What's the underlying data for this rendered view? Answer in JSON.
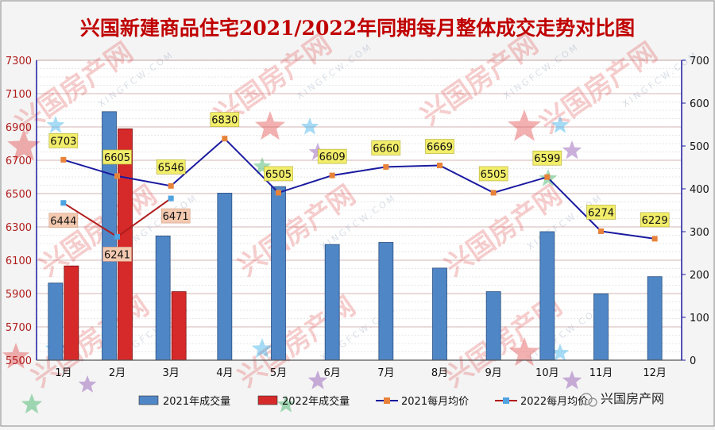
{
  "chart_data": {
    "type": "bar",
    "title": "兴国新建商品住宅2021/2022年同期每月整体成交走势对比图",
    "categories": [
      "1月",
      "2月",
      "3月",
      "4月",
      "5月",
      "6月",
      "7月",
      "8月",
      "9月",
      "10月",
      "11月",
      "12月"
    ],
    "left_axis": {
      "ylim": [
        5500,
        7300
      ],
      "ticks": [
        5500,
        5700,
        5900,
        6100,
        6300,
        6500,
        6700,
        6900,
        7100,
        7300
      ]
    },
    "right_axis": {
      "ylim": [
        0,
        700
      ],
      "ticks": [
        0,
        100,
        200,
        300,
        400,
        500,
        600,
        700
      ]
    },
    "series": [
      {
        "name": "2021年成交量",
        "kind": "bar",
        "axis": "right",
        "color": "#4f86c6",
        "values": [
          180,
          580,
          290,
          390,
          405,
          270,
          275,
          215,
          160,
          300,
          155,
          195
        ]
      },
      {
        "name": "2022年成交量",
        "kind": "bar",
        "axis": "right",
        "color": "#d62a2a",
        "values": [
          220,
          540,
          160,
          null,
          null,
          null,
          null,
          null,
          null,
          null,
          null,
          null
        ]
      },
      {
        "name": "2021每月均价",
        "kind": "line",
        "axis": "left",
        "color": "#1a1aa0",
        "marker_color": "#e8823a",
        "values": [
          6703,
          6605,
          6546,
          6830,
          6505,
          6609,
          6660,
          6669,
          6505,
          6599,
          6274,
          6229
        ]
      },
      {
        "name": "2022每月均价",
        "kind": "line",
        "axis": "left",
        "color": "#b01c1c",
        "marker_color": "#4ea3e0",
        "values": [
          6444,
          6241,
          6471,
          null,
          null,
          null,
          null,
          null,
          null,
          null,
          null,
          null
        ]
      }
    ],
    "legend_position": "bottom",
    "grid": true
  },
  "watermark": {
    "brand": "兴国房产网",
    "url": "XINGFCW.COM"
  },
  "footer_brand": "兴国房产网"
}
